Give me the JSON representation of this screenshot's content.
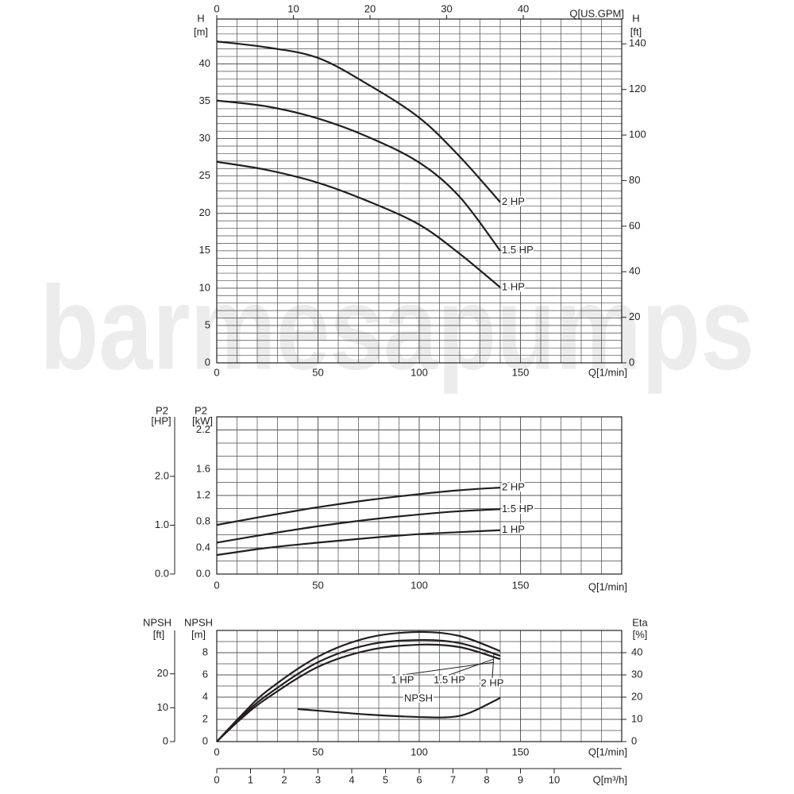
{
  "watermark": "barmesapumps",
  "chart_data": [
    {
      "type": "line",
      "x_label": "Q[1/min]",
      "x2_label": "Q[US.GPM]",
      "y_title": "H",
      "y_unit": "[m]",
      "y2_title": "H",
      "y2_unit": "[ft]",
      "xlim": [
        0,
        200
      ],
      "xticks": [
        0,
        50,
        100,
        150
      ],
      "x2lim": [
        0,
        52.84
      ],
      "x2ticks": [
        0,
        10,
        20,
        30,
        40
      ],
      "ylim": [
        0,
        46
      ],
      "yticks": [
        0,
        5,
        10,
        15,
        20,
        25,
        30,
        35,
        40
      ],
      "y2lim": [
        0,
        150.9
      ],
      "y2ticks": [
        0,
        20,
        40,
        60,
        80,
        100,
        120,
        140
      ],
      "grid": true,
      "series": [
        {
          "name": "2 HP",
          "color": "#231f20",
          "x": [
            0,
            25,
            50,
            75,
            100,
            120,
            140
          ],
          "values": [
            43,
            42.2,
            40.8,
            37.2,
            32.8,
            27.6,
            21.5
          ]
        },
        {
          "name": "1.5 HP",
          "color": "#231f20",
          "x": [
            0,
            25,
            50,
            75,
            100,
            120,
            140
          ],
          "values": [
            35.1,
            34.3,
            32.7,
            30.2,
            26.8,
            22.2,
            15.0
          ]
        },
        {
          "name": "1 HP",
          "color": "#231f20",
          "x": [
            0,
            25,
            50,
            75,
            100,
            120,
            140
          ],
          "values": [
            26.9,
            25.8,
            24.1,
            21.6,
            18.5,
            14.6,
            10.1
          ]
        }
      ]
    },
    {
      "type": "line",
      "x_label": "Q[1/min]",
      "y_title": "P2",
      "y_unit": "[kW]",
      "y2_title": "P2",
      "y2_unit": "[HP]",
      "xlim": [
        0,
        200
      ],
      "xticks": [
        0,
        50,
        100,
        150
      ],
      "ylim": [
        0,
        2.4
      ],
      "yticks": [
        {
          "value": 0,
          "label": "0.0"
        },
        0.4,
        0.8,
        1.2,
        1.6,
        2.2
      ],
      "y2lim": [
        0,
        3.218
      ],
      "y2ticks": [
        {
          "value": 0,
          "label": "0.0"
        },
        {
          "value": 1,
          "label": "1.0"
        },
        {
          "value": 2,
          "label": "2.0"
        }
      ],
      "grid": true,
      "series": [
        {
          "name": "2 HP",
          "color": "#231f20",
          "x": [
            0,
            25,
            50,
            75,
            100,
            120,
            140
          ],
          "values": [
            0.75,
            0.89,
            1.02,
            1.13,
            1.22,
            1.28,
            1.32
          ]
        },
        {
          "name": "1.5 HP",
          "color": "#231f20",
          "x": [
            0,
            25,
            50,
            75,
            100,
            120,
            140
          ],
          "values": [
            0.48,
            0.61,
            0.73,
            0.83,
            0.91,
            0.96,
            0.99
          ]
        },
        {
          "name": "1 HP",
          "color": "#231f20",
          "x": [
            0,
            25,
            50,
            75,
            100,
            120,
            140
          ],
          "values": [
            0.29,
            0.4,
            0.48,
            0.55,
            0.61,
            0.64,
            0.67
          ]
        }
      ]
    },
    {
      "type": "line",
      "x_label": "Q[1/min]",
      "x2_label": "Q[m³/h]",
      "y_title": "NPSH",
      "y_unit": "[m]",
      "y2_title": "Eta",
      "y2_unit": "[%]",
      "y3_title": "NPSH",
      "y3_unit": "[ft]",
      "xlim": [
        0,
        200
      ],
      "xticks": [
        0,
        50,
        100,
        150
      ],
      "x2lim": [
        0,
        12
      ],
      "x2ticks": [
        0,
        1,
        2,
        3,
        4,
        5,
        6,
        7,
        8,
        9,
        10
      ],
      "ylim": [
        0,
        10
      ],
      "yticks": [
        0,
        2,
        4,
        6,
        8
      ],
      "y2lim": [
        0,
        50
      ],
      "y2ticks": [
        0,
        10,
        20,
        30,
        40
      ],
      "y3lim": [
        0,
        32.81
      ],
      "y3ticks": [
        0,
        10,
        20
      ],
      "grid": true,
      "series": [
        {
          "name": "1 HP",
          "color": "#231f20",
          "axis": "y2",
          "x": [
            0,
            12.5,
            25,
            50,
            75,
            100,
            120,
            140
          ],
          "values": [
            0,
            10.7,
            19.6,
            33.6,
            41.1,
            43.6,
            42.5,
            37.1
          ]
        },
        {
          "name": "1.5 HP",
          "color": "#231f20",
          "axis": "y2",
          "x": [
            0,
            12.5,
            25,
            50,
            75,
            100,
            120,
            140
          ],
          "values": [
            0,
            11.4,
            21,
            35.7,
            43.6,
            45.7,
            44.3,
            38.6
          ]
        },
        {
          "name": "2 HP",
          "color": "#231f20",
          "axis": "y2",
          "x": [
            0,
            12.5,
            25,
            50,
            75,
            100,
            120,
            140
          ],
          "values": [
            0,
            12.1,
            22.9,
            38.2,
            46.8,
            49.3,
            47.5,
            40.7
          ]
        },
        {
          "name": "NPSH",
          "color": "#231f20",
          "x": [
            40,
            75,
            100,
            115,
            125,
            140
          ],
          "values": [
            2.93,
            2.43,
            2.21,
            2.2,
            2.6,
            3.93
          ]
        }
      ]
    }
  ]
}
